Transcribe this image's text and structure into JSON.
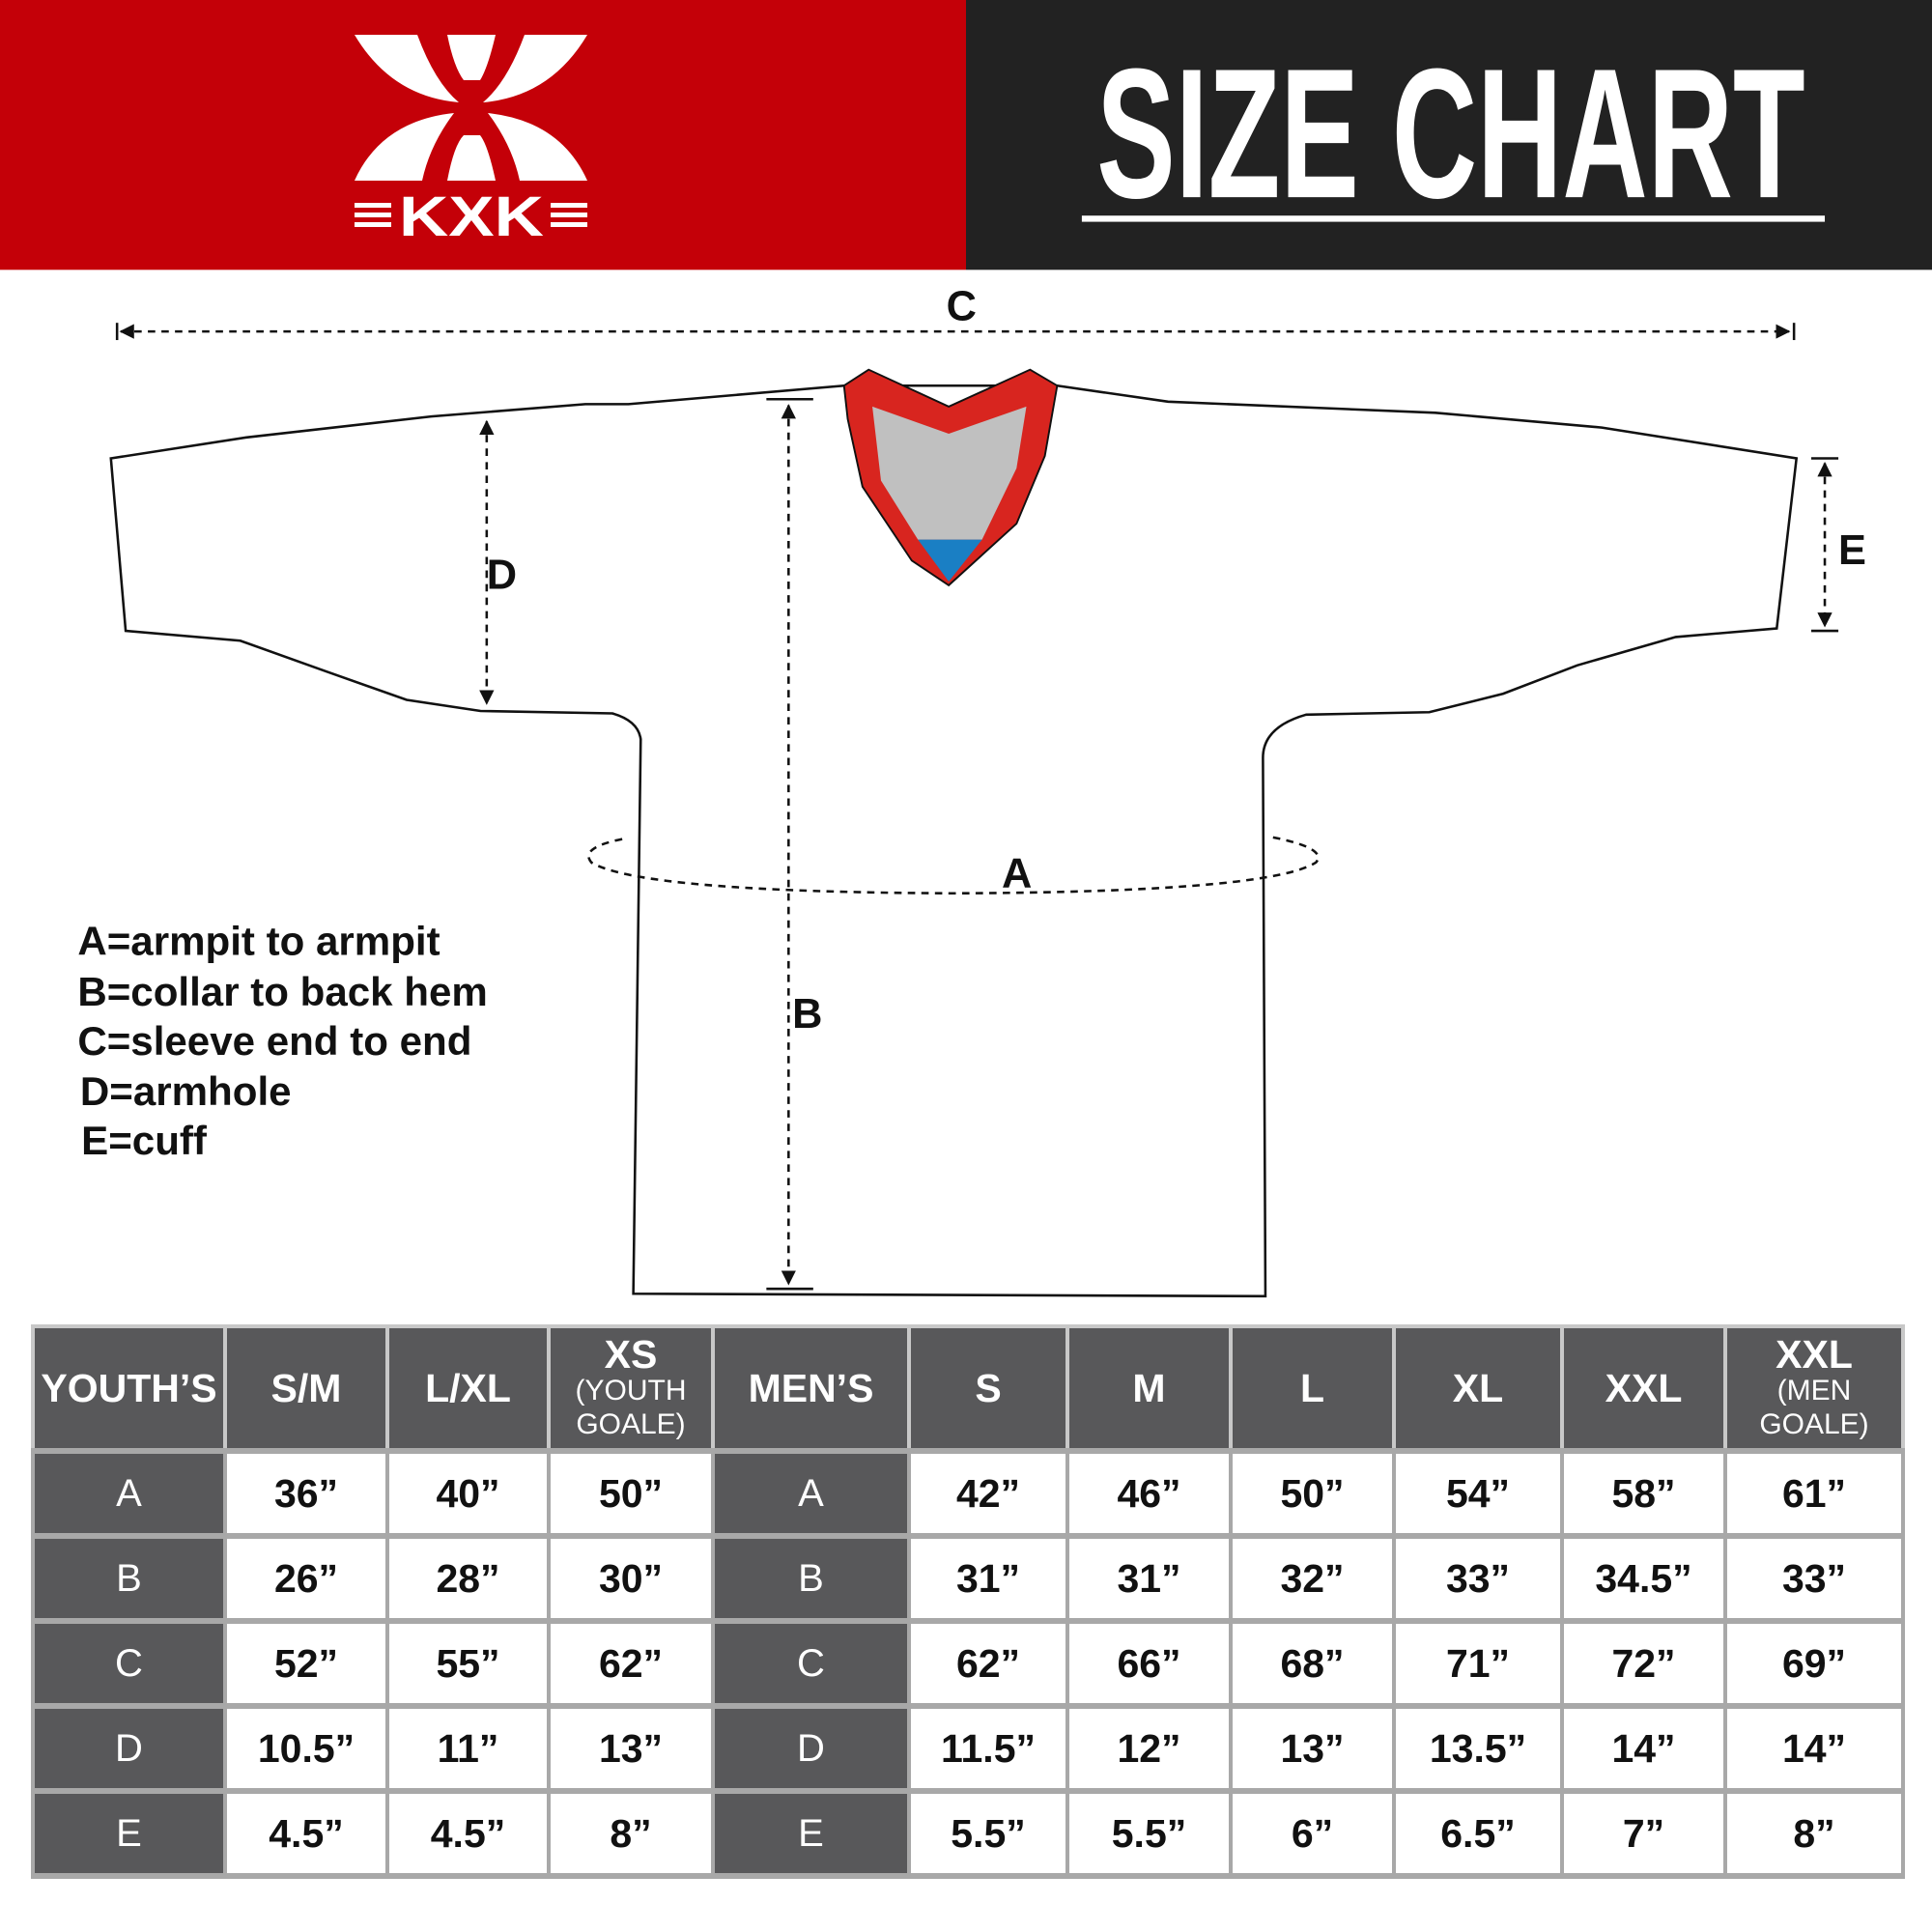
{
  "header": {
    "title": "SIZE CHART",
    "logo_text": "KXK",
    "brand_color": "#c40008",
    "title_bg": "#222222"
  },
  "diagram": {
    "labels": {
      "a": "A",
      "b": "B",
      "c": "C",
      "d": "D",
      "e": "E"
    },
    "collar_color": "#d8251f",
    "collar_inner": "#c0c0c0",
    "collar_accent": "#1a7fc4"
  },
  "legend": [
    "A=armpit to armpit",
    "B=collar to back hem",
    "C=sleeve end to end",
    "D=armhole",
    "E=cuff"
  ],
  "table": {
    "headers": [
      {
        "main": "YOUTH’S",
        "sub": ""
      },
      {
        "main": "S/M",
        "sub": ""
      },
      {
        "main": "L/XL",
        "sub": ""
      },
      {
        "main": "XS",
        "sub": "(YOUTH GOALE)"
      },
      {
        "main": "MEN’S",
        "sub": ""
      },
      {
        "main": "S",
        "sub": ""
      },
      {
        "main": "M",
        "sub": ""
      },
      {
        "main": "L",
        "sub": ""
      },
      {
        "main": "XL",
        "sub": ""
      },
      {
        "main": "XXL",
        "sub": ""
      },
      {
        "main": "XXL",
        "sub": "(MEN GOALE)"
      }
    ],
    "rows": [
      {
        "label": "A",
        "youth": [
          "36”",
          "40”",
          "50”"
        ],
        "men": [
          "42”",
          "46”",
          "50”",
          "54”",
          "58”",
          "61”"
        ]
      },
      {
        "label": "B",
        "youth": [
          "26”",
          "28”",
          "30”"
        ],
        "men": [
          "31”",
          "31”",
          "32”",
          "33”",
          "34.5”",
          "33”"
        ]
      },
      {
        "label": "C",
        "youth": [
          "52”",
          "55”",
          "62”"
        ],
        "men": [
          "62”",
          "66”",
          "68”",
          "71”",
          "72”",
          "69”"
        ]
      },
      {
        "label": "D",
        "youth": [
          "10.5”",
          "11”",
          "13”"
        ],
        "men": [
          "11.5”",
          "12”",
          "13”",
          "13.5”",
          "14”",
          "14”"
        ]
      },
      {
        "label": "E",
        "youth": [
          "4.5”",
          "4.5”",
          "8”"
        ],
        "men": [
          "5.5”",
          "5.5”",
          "6”",
          "6.5”",
          "7”",
          "8”"
        ]
      }
    ]
  }
}
